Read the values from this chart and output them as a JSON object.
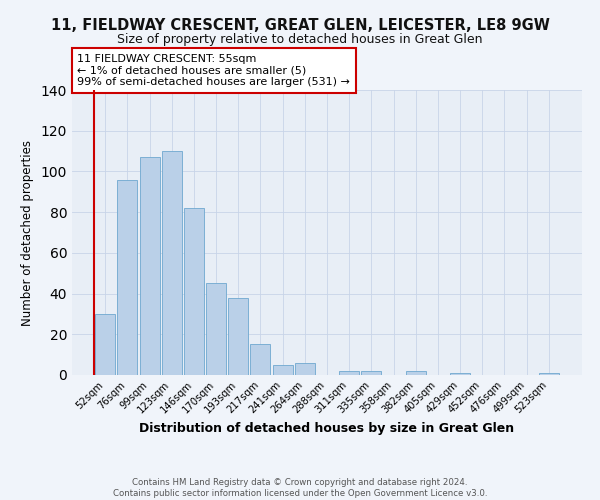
{
  "title": "11, FIELDWAY CRESCENT, GREAT GLEN, LEICESTER, LE8 9GW",
  "subtitle": "Size of property relative to detached houses in Great Glen",
  "xlabel": "Distribution of detached houses by size in Great Glen",
  "ylabel": "Number of detached properties",
  "bar_labels": [
    "52sqm",
    "76sqm",
    "99sqm",
    "123sqm",
    "146sqm",
    "170sqm",
    "193sqm",
    "217sqm",
    "241sqm",
    "264sqm",
    "288sqm",
    "311sqm",
    "335sqm",
    "358sqm",
    "382sqm",
    "405sqm",
    "429sqm",
    "452sqm",
    "476sqm",
    "499sqm",
    "523sqm"
  ],
  "bar_values": [
    30,
    96,
    107,
    110,
    82,
    45,
    38,
    15,
    5,
    6,
    0,
    2,
    2,
    0,
    2,
    0,
    1,
    0,
    0,
    0,
    1
  ],
  "bar_color": "#bad0e8",
  "bar_edge_color": "#6fa8d0",
  "highlight_color": "#cc0000",
  "ylim": [
    0,
    140
  ],
  "yticks": [
    0,
    20,
    40,
    60,
    80,
    100,
    120,
    140
  ],
  "annotation_title": "11 FIELDWAY CRESCENT: 55sqm",
  "annotation_line1": "← 1% of detached houses are smaller (5)",
  "annotation_line2": "99% of semi-detached houses are larger (531) →",
  "annotation_box_color": "#ffffff",
  "annotation_box_edge": "#cc0000",
  "footer_line1": "Contains HM Land Registry data © Crown copyright and database right 2024.",
  "footer_line2": "Contains public sector information licensed under the Open Government Licence v3.0.",
  "background_color": "#f0f4fa",
  "plot_background": "#e8eef6"
}
